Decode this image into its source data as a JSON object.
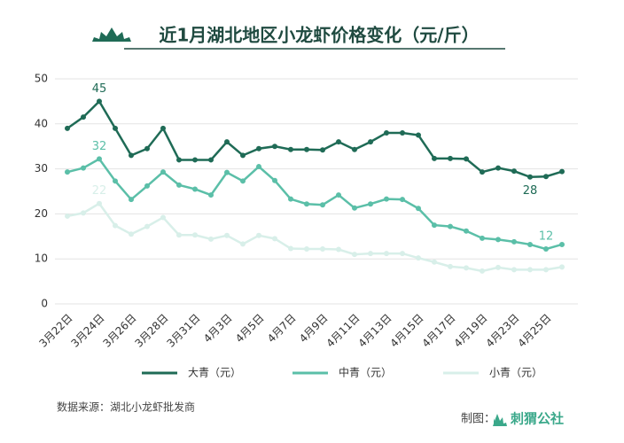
{
  "chart_data": {
    "type": "line",
    "title": "近1月湖北地区小龙虾价格变化（元/斤）",
    "source": "数据来源：湖北小龙虾批发商",
    "credit": "制图：",
    "brand": "刺猬公社",
    "categories": [
      "3月22日",
      null,
      "3月24日",
      null,
      "3月26日",
      null,
      "3月28日",
      null,
      "3月31日",
      null,
      "4月3日",
      null,
      "4月5日",
      null,
      "4月7日",
      null,
      "4月9日",
      null,
      "4月11日",
      null,
      "4月13日",
      null,
      "4月15日",
      null,
      "4月17日",
      null,
      "4月19日",
      null,
      "4月23日",
      null,
      "4月25日",
      null
    ],
    "series": [
      {
        "name": "大青（元）",
        "color": "#1f6b56",
        "values": [
          39,
          41.5,
          45,
          39,
          33,
          34.5,
          39,
          32,
          32,
          32,
          36,
          33,
          34.5,
          35,
          34.3,
          34.3,
          34.2,
          36,
          34.3,
          36,
          38,
          38,
          37.5,
          32.3,
          32.3,
          32.2,
          29.3,
          30.2,
          29.5,
          28.2,
          28.3,
          29.4
        ],
        "value_labels": [
          null,
          null,
          "45",
          null,
          null,
          null,
          null,
          null,
          null,
          null,
          null,
          null,
          null,
          null,
          null,
          null,
          null,
          null,
          null,
          null,
          null,
          null,
          null,
          null,
          null,
          null,
          null,
          null,
          null,
          "28",
          null,
          null
        ]
      },
      {
        "name": "中青（元）",
        "color": "#5bbfa8",
        "values": [
          29.3,
          30.2,
          32.2,
          27.3,
          23.2,
          26.2,
          29.3,
          26.4,
          25.5,
          24.2,
          29.2,
          27.3,
          30.5,
          27.4,
          23.3,
          22.2,
          22,
          24.2,
          21.3,
          22.2,
          23.3,
          23.2,
          21.2,
          17.5,
          17.2,
          16.2,
          14.6,
          14.3,
          13.8,
          13.2,
          12.2,
          13.2
        ],
        "value_labels": [
          null,
          null,
          "32",
          null,
          null,
          null,
          null,
          null,
          null,
          null,
          null,
          null,
          null,
          null,
          null,
          null,
          null,
          null,
          null,
          null,
          null,
          null,
          null,
          null,
          null,
          null,
          null,
          null,
          null,
          null,
          "12",
          null
        ]
      },
      {
        "name": "小青（元）",
        "color": "#d8efe9",
        "values": [
          19.5,
          20.2,
          22.3,
          17.4,
          15.5,
          17.2,
          19.2,
          15.3,
          15.3,
          14.4,
          15.2,
          13.3,
          15.2,
          14.5,
          12.3,
          12.2,
          12.2,
          12.1,
          11,
          11.2,
          11.2,
          11.2,
          10.2,
          9.3,
          8.3,
          8,
          7.3,
          8.1,
          7.6,
          7.6,
          7.6,
          8.2
        ],
        "value_labels": [
          null,
          null,
          "22",
          null,
          null,
          null,
          null,
          null,
          null,
          null,
          null,
          null,
          null,
          null,
          null,
          null,
          null,
          null,
          null,
          null,
          null,
          null,
          null,
          null,
          null,
          null,
          null,
          null,
          null,
          null,
          null,
          null
        ]
      }
    ],
    "ylim": [
      0,
      50
    ],
    "yticks": [
      0,
      10,
      20,
      30,
      40,
      50
    ],
    "grid": true
  }
}
